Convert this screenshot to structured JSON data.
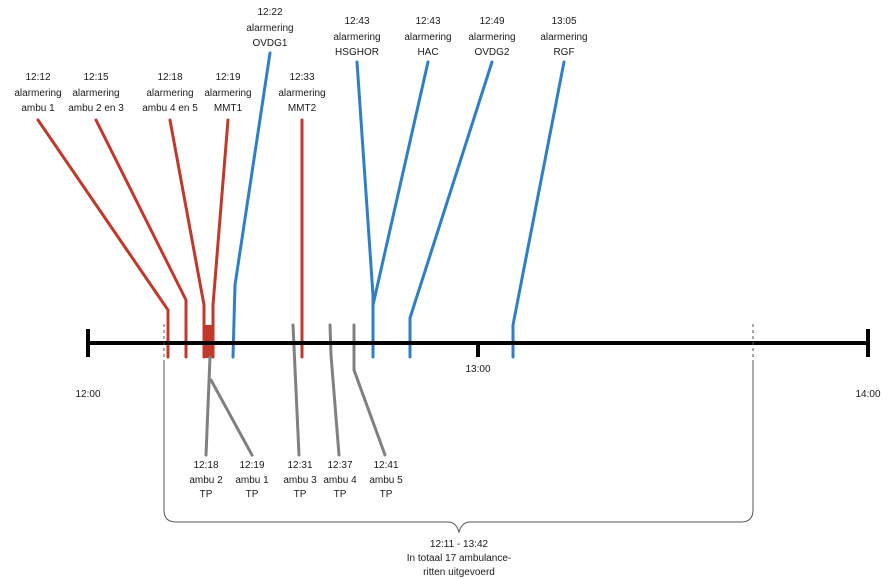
{
  "timeline": {
    "start_label": "12:00",
    "mid_label": "13:00",
    "end_label": "14:00"
  },
  "colors": {
    "axis": "#000000",
    "ambulance_alarm": "#c0392b",
    "unit_alarm": "#2f7fc8",
    "transport": "#808080",
    "span": "#555555"
  },
  "alarms_red": [
    {
      "time": "12:12",
      "line1": "alarmering",
      "line2": "ambu 1"
    },
    {
      "time": "12:15",
      "line1": "alarmering",
      "line2": "ambu 2 en 3"
    },
    {
      "time": "12:18",
      "line1": "alarmering",
      "line2": "ambu 4 en 5"
    },
    {
      "time": "12:19",
      "line1": "alarmering",
      "line2": "MMT1"
    },
    {
      "time": "12:33",
      "line1": "alarmering",
      "line2": "MMT2"
    }
  ],
  "alarms_blue": [
    {
      "time": "12:22",
      "line1": "alarmering",
      "line2": "OVDG1"
    },
    {
      "time": "12:43",
      "line1": "alarmering",
      "line2": "HSGHOR"
    },
    {
      "time": "12:43",
      "line1": "alarmering",
      "line2": "HAC"
    },
    {
      "time": "12:49",
      "line1": "alarmering",
      "line2": "OVDG2"
    },
    {
      "time": "13:05",
      "line1": "alarmering",
      "line2": "RGF"
    }
  ],
  "transports": [
    {
      "time": "12:18",
      "line1": "ambu 2",
      "line2": "TP"
    },
    {
      "time": "12:19",
      "line1": "ambu 1",
      "line2": "TP"
    },
    {
      "time": "12:31",
      "line1": "ambu 3",
      "line2": "TP"
    },
    {
      "time": "12:37",
      "line1": "ambu 4",
      "line2": "TP"
    },
    {
      "time": "12:41",
      "line1": "ambu 5",
      "line2": "TP"
    }
  ],
  "span": {
    "line1": "12:11 - 13:42",
    "line2": "In totaal 17 ambulance-",
    "line3": "ritten uitgevoerd"
  }
}
